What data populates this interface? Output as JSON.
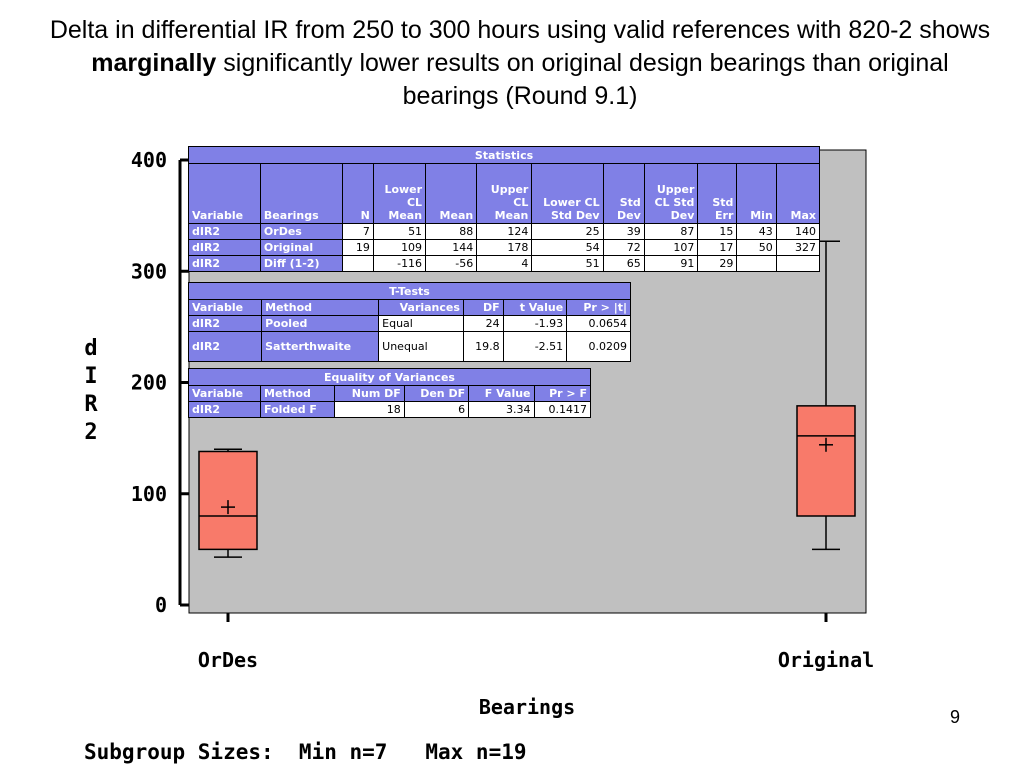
{
  "title": {
    "part1": "Delta in differential IR from 250 to 300 hours using valid references with 820-2 shows ",
    "bold": "marginally",
    "part2": " significantly lower results on original design bearings than original bearings (Round 9.1)"
  },
  "page_number": "9",
  "subgroup_text": "Subgroup Sizes:  Min n=7   Max n=19",
  "colors": {
    "plot_bg": "#c0c0c0",
    "box_fill": "#f87a6a",
    "table_header": "#8080e6"
  },
  "chart_data": {
    "type": "box",
    "xlabel": "Bearings",
    "ylabel": "dIR2",
    "ylabel_chars": [
      "d",
      "I",
      "R",
      "2"
    ],
    "ylim": [
      0,
      400
    ],
    "yticks": [
      0,
      100,
      200,
      300,
      400
    ],
    "categories": [
      "OrDes",
      "Original"
    ],
    "boxes": [
      {
        "category": "OrDes",
        "min": 43,
        "q1": 50,
        "median": 80,
        "mean": 88,
        "q3": 138,
        "max": 140
      },
      {
        "category": "Original",
        "min": 50,
        "q1": 80,
        "median": 152,
        "mean": 144,
        "q3": 179,
        "max": 327
      }
    ]
  },
  "tables": {
    "statistics": {
      "caption": "Statistics",
      "headers": [
        "Variable",
        "Bearings",
        "N",
        "Lower CL Mean",
        "Mean",
        "Upper CL Mean",
        "Lower CL Std Dev",
        "Std Dev",
        "Upper CL Std Dev",
        "Std Err",
        "Min",
        "Max"
      ],
      "rows": [
        [
          "dIR2",
          "OrDes",
          "7",
          "51",
          "88",
          "124",
          "25",
          "39",
          "87",
          "15",
          "43",
          "140"
        ],
        [
          "dIR2",
          "Original",
          "19",
          "109",
          "144",
          "178",
          "54",
          "72",
          "107",
          "17",
          "50",
          "327"
        ],
        [
          "dIR2",
          "Diff (1-2)",
          "",
          "-116",
          "-56",
          "4",
          "51",
          "65",
          "91",
          "29",
          "",
          ""
        ]
      ]
    },
    "ttests": {
      "caption": "T-Tests",
      "headers": [
        "Variable",
        "Method",
        "Variances",
        "DF",
        "t Value",
        "Pr > |t|"
      ],
      "rows": [
        [
          "dIR2",
          "Pooled",
          "Equal",
          "24",
          "-1.93",
          "0.0654"
        ],
        [
          "dIR2",
          "Satterthwaite",
          "Unequal",
          "19.8",
          "-2.51",
          "0.0209"
        ]
      ]
    },
    "variances": {
      "caption": "Equality of Variances",
      "headers": [
        "Variable",
        "Method",
        "Num DF",
        "Den DF",
        "F Value",
        "Pr > F"
      ],
      "rows": [
        [
          "dIR2",
          "Folded F",
          "18",
          "6",
          "3.34",
          "0.1417"
        ]
      ]
    }
  }
}
